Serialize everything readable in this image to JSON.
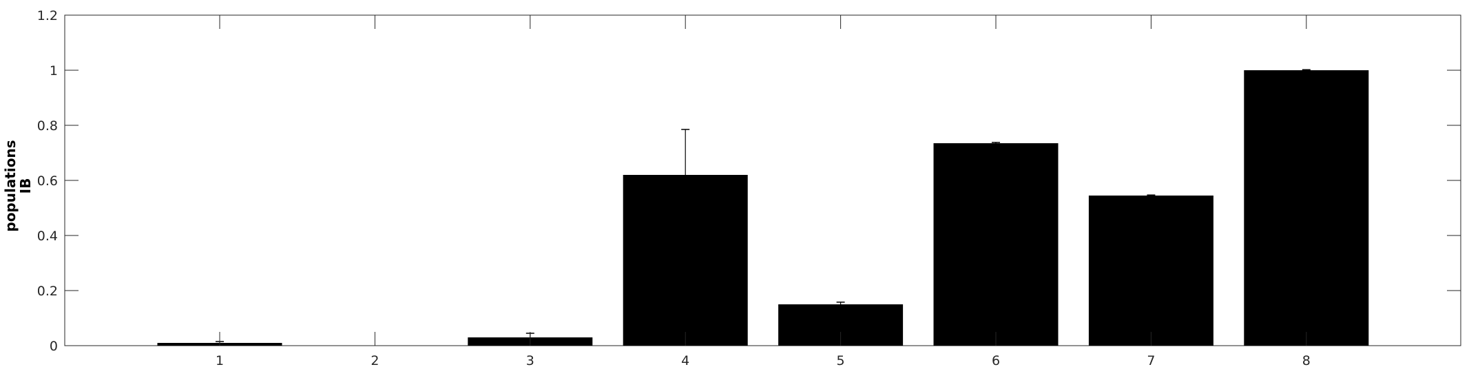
{
  "chart_data": {
    "type": "bar",
    "title": "",
    "xlabel": "",
    "ylabel": [
      "populations",
      "IB"
    ],
    "categories": [
      "1",
      "2",
      "3",
      "4",
      "5",
      "6",
      "7",
      "8"
    ],
    "values": [
      0.01,
      0.0,
      0.03,
      0.62,
      0.15,
      0.735,
      0.545,
      1.0
    ],
    "errors": [
      0.005,
      0.0,
      0.015,
      0.165,
      0.008,
      0.003,
      0.002,
      0.002
    ],
    "ylim": [
      0,
      1.2
    ],
    "yticks": [
      "0",
      "0.2",
      "0.4",
      "0.6",
      "0.8",
      "1",
      "1.2"
    ],
    "ytick_values": [
      0,
      0.2,
      0.4,
      0.6,
      0.8,
      1.0,
      1.2
    ],
    "grid": false,
    "legend": "none",
    "colors": {
      "bar": "#000000",
      "axes": "#262626",
      "background": "#ffffff"
    }
  }
}
